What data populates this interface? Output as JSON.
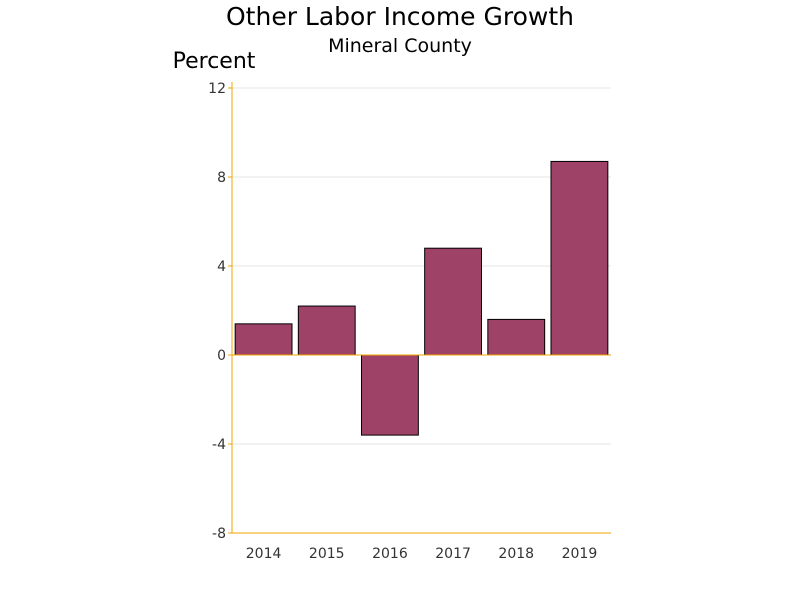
{
  "chart_data": {
    "type": "bar",
    "title": "Other Labor Income Growth",
    "subtitle": "Mineral County",
    "ylabel": "Percent",
    "xlabel": "",
    "categories": [
      "2014",
      "2015",
      "2016",
      "2017",
      "2018",
      "2019"
    ],
    "values": [
      1.4,
      2.2,
      -3.6,
      4.8,
      1.6,
      8.7
    ],
    "ylim": [
      -8,
      12
    ],
    "yticks": [
      -8,
      -4,
      0,
      4,
      8,
      12
    ],
    "grid": true,
    "legend": "none",
    "colors": {
      "bar": "#9e4268",
      "axis": "#f0a500",
      "grid": "#e6e6e6"
    }
  }
}
